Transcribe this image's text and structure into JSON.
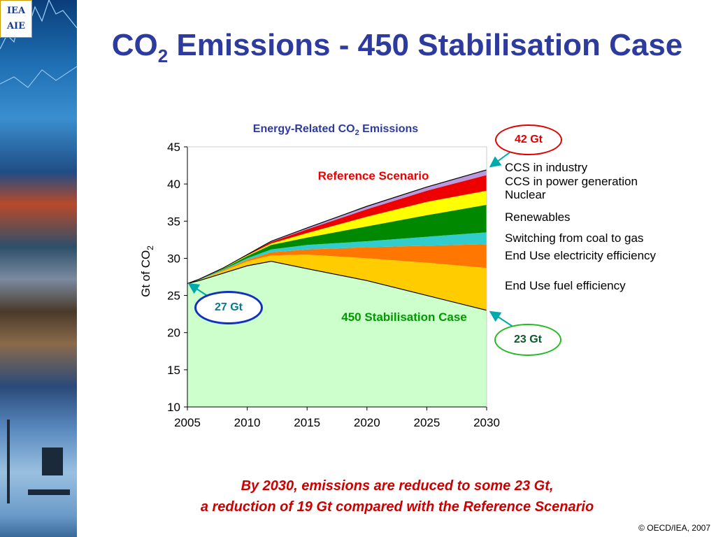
{
  "slide": {
    "title_main": "CO",
    "title_sub": "2",
    "title_rest": " Emissions - 450 Stabilisation Case",
    "caption_line1": "By 2030, emissions are reduced to some 23 Gt,",
    "caption_line2": "a reduction of 19 Gt compared with the Reference Scenario",
    "copyright": "© OECD/IEA, 2007",
    "logo_top": "IEA",
    "logo_bottom": "AIE"
  },
  "chart_data": {
    "type": "area",
    "title_main": "Energy-Related CO",
    "title_sub": "2",
    "title_rest": " Emissions",
    "ylabel_main": "Gt of CO",
    "ylabel_sub": "2",
    "xlim": [
      2005,
      2030
    ],
    "ylim": [
      10,
      45
    ],
    "x_ticks": [
      "2005",
      "2010",
      "2015",
      "2020",
      "2025",
      "2030"
    ],
    "y_ticks": [
      "10",
      "15",
      "20",
      "25",
      "30",
      "35",
      "40",
      "45"
    ],
    "x": [
      2005,
      2006,
      2008,
      2010,
      2012,
      2015,
      2020,
      2025,
      2030
    ],
    "baseline": [
      26.6,
      27.0,
      28.0,
      29.0,
      29.6,
      28.6,
      27.0,
      25.0,
      23.0
    ],
    "series": [
      {
        "name": "End Use fuel efficiency",
        "color": "#ffcc00",
        "values": [
          26.6,
          27.1,
          28.3,
          29.6,
          30.4,
          30.5,
          30.0,
          29.4,
          28.7
        ]
      },
      {
        "name": "End Use electricity efficiency",
        "color": "#ff7700",
        "values": [
          26.6,
          27.1,
          28.4,
          29.8,
          30.8,
          31.2,
          31.5,
          31.7,
          31.9
        ]
      },
      {
        "name": "Switching from coal to gas",
        "color": "#33cccc",
        "values": [
          26.6,
          27.2,
          28.5,
          30.0,
          31.2,
          31.8,
          32.3,
          32.9,
          33.5
        ]
      },
      {
        "name": "Renewables",
        "color": "#008800",
        "values": [
          26.6,
          27.2,
          28.6,
          30.3,
          31.8,
          32.8,
          34.3,
          35.8,
          37.2
        ]
      },
      {
        "name": "Nuclear",
        "color": "#ffff00",
        "values": [
          26.6,
          27.2,
          28.7,
          30.4,
          32.0,
          33.4,
          35.6,
          37.6,
          39.1
        ]
      },
      {
        "name": "CCS in power generation",
        "color": "#ee0000",
        "values": [
          26.6,
          27.2,
          28.7,
          30.5,
          32.2,
          33.9,
          36.6,
          39.1,
          41.2
        ]
      },
      {
        "name": "CCS in industry",
        "color": "#bb99dd",
        "values": [
          26.6,
          27.2,
          28.7,
          30.5,
          32.3,
          34.1,
          37.0,
          39.6,
          41.9
        ]
      }
    ],
    "labels": {
      "reference": "Reference Scenario",
      "stabilisation": "450 Stabilisation Case",
      "start_value": "27 Gt",
      "end_reference": "42 Gt",
      "end_stabilisation": "23 Gt"
    },
    "colors": {
      "stabilisation_fill": "#ccffcc",
      "title_color": "#2e3b9e",
      "reference_label": "#ee0000",
      "stabilisation_label": "#009900",
      "arrow_color": "#00aaaa"
    }
  }
}
